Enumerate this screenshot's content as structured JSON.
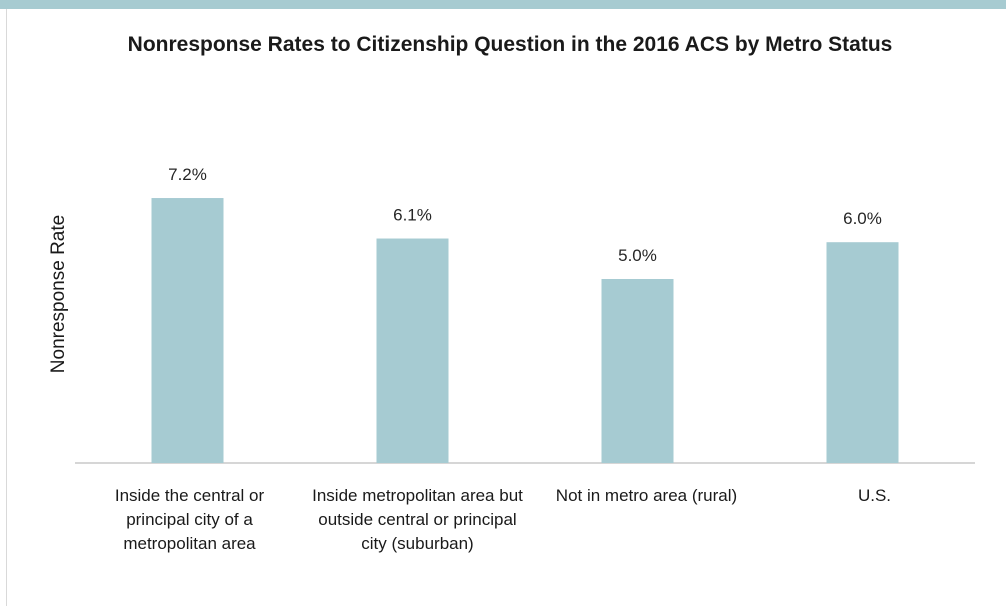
{
  "chart_data": {
    "type": "bar",
    "title": "Nonresponse Rates to Citizenship Question in the 2016 ACS by Metro Status",
    "ylabel": "Nonresponse Rate",
    "xlabel": "",
    "categories": [
      "Inside the central or principal city of a metropolitan area",
      "Inside metropolitan area but outside central or principal city (suburban)",
      "Not in metro area (rural)",
      "U.S."
    ],
    "values": [
      7.2,
      6.1,
      5.0,
      6.0
    ],
    "data_labels": [
      "7.2%",
      "6.1%",
      "5.0%",
      "6.0%"
    ],
    "ylim": [
      0,
      10
    ],
    "grid": false,
    "legend": "none",
    "colors": {
      "bar": "#a6cbd2",
      "accent_band": "#a7cbd1"
    }
  }
}
